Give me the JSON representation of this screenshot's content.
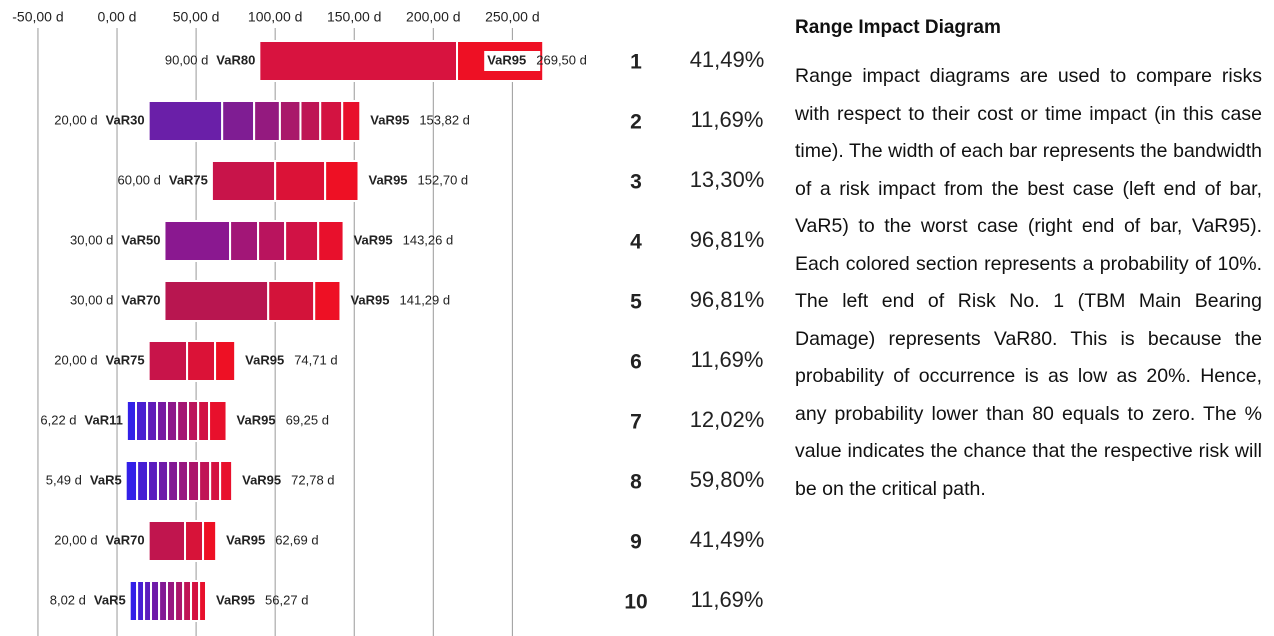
{
  "chart_data": {
    "type": "range_impact",
    "xlim": [
      -74,
      270
    ],
    "xticks": [
      {
        "value": -50,
        "label": "-50,00 d"
      },
      {
        "value": 0,
        "label": "0,00 d"
      },
      {
        "value": 50,
        "label": "50,00 d"
      },
      {
        "value": 100,
        "label": "100,00 d"
      },
      {
        "value": 150,
        "label": "150,00 d"
      },
      {
        "value": 200,
        "label": "200,00 d"
      },
      {
        "value": 250,
        "label": "250,00 d"
      }
    ],
    "grid": true,
    "bars": [
      {
        "rank": 1,
        "min": 90,
        "min_label": "90,00 d",
        "start": "VaR80",
        "end": "VaR95",
        "max": 269.5,
        "max_label": "269,50 d",
        "breaks": [
          215
        ],
        "colors": [
          "#d8133f",
          "#ee1024"
        ],
        "criticality": 41.49,
        "criticality_label": "41,49%"
      },
      {
        "rank": 2,
        "min": 20,
        "min_label": "20,00 d",
        "start": "VaR30",
        "end": "VaR95",
        "max": 153.82,
        "max_label": "153,82 d",
        "breaks": [
          66.5,
          86.7,
          103,
          116,
          128.5,
          142.4
        ],
        "colors": [
          "#6a1fa8",
          "#e8102c"
        ],
        "criticality": 11.69,
        "criticality_label": "11,69%"
      },
      {
        "rank": 3,
        "min": 60,
        "min_label": "60,00 d",
        "start": "VaR75",
        "end": "VaR95",
        "max": 152.7,
        "max_label": "152,70 d",
        "breaks": [
          100,
          131.6
        ],
        "colors": [
          "#c8144a",
          "#ee1024"
        ],
        "criticality": 13.3,
        "criticality_label": "13,30%"
      },
      {
        "rank": 4,
        "min": 30,
        "min_label": "30,00 d",
        "start": "VaR50",
        "end": "VaR95",
        "max": 143.26,
        "max_label": "143,26 d",
        "breaks": [
          71.5,
          89.2,
          106.3,
          127.2
        ],
        "colors": [
          "#8a1890",
          "#e8102c"
        ],
        "criticality": 96.81,
        "criticality_label": "96,81%"
      },
      {
        "rank": 5,
        "min": 30,
        "min_label": "30,00 d",
        "start": "VaR70",
        "end": "VaR95",
        "max": 141.29,
        "max_label": "141,29 d",
        "breaks": [
          95.6,
          124.7
        ],
        "colors": [
          "#b81650",
          "#ee1024"
        ],
        "criticality": 96.81,
        "criticality_label": "96,81%"
      },
      {
        "rank": 6,
        "min": 20,
        "min_label": "20,00 d",
        "start": "VaR75",
        "end": "VaR95",
        "max": 74.71,
        "max_label": "74,71 d",
        "breaks": [
          44.3,
          62
        ],
        "colors": [
          "#c8144a",
          "#ee1024"
        ],
        "criticality": 11.69,
        "criticality_label": "11,69%"
      },
      {
        "rank": 7,
        "min": 6.22,
        "min_label": "6,22 d",
        "start": "VaR11",
        "end": "VaR95",
        "max": 69.25,
        "max_label": "69,25 d",
        "breaks": [
          12,
          19,
          25.3,
          31.6,
          38,
          44.9,
          51.3,
          58.2
        ],
        "colors": [
          "#3320e8",
          "#e8102c"
        ],
        "criticality": 12.02,
        "criticality_label": "12,02%"
      },
      {
        "rank": 8,
        "min": 5.49,
        "min_label": "5,49 d",
        "start": "VaR5",
        "end": "VaR95",
        "max": 72.78,
        "max_label": "72,78 d",
        "breaks": [
          12.7,
          19.6,
          25.9,
          32.3,
          38.6,
          44.9,
          51.9,
          58.9,
          65.2
        ],
        "colors": [
          "#3320e8",
          "#e8102c"
        ],
        "criticality": 59.8,
        "criticality_label": "59,80%"
      },
      {
        "rank": 9,
        "min": 20,
        "min_label": "20,00 d",
        "start": "VaR70",
        "end": "VaR95",
        "max": 62.69,
        "max_label": "62,69 d",
        "breaks": [
          43,
          54.4
        ],
        "colors": [
          "#c0154e",
          "#ee1024"
        ],
        "criticality": 41.49,
        "criticality_label": "41,49%"
      },
      {
        "rank": 10,
        "min": 8.02,
        "min_label": "8,02 d",
        "start": "VaR5",
        "end": "VaR95",
        "max": 56.27,
        "max_label": "56,27 d",
        "breaks": [
          12.7,
          17.1,
          21.5,
          26.6,
          31.6,
          36.7,
          41.8,
          46.8,
          51.9
        ],
        "colors": [
          "#3320e8",
          "#e8102c"
        ],
        "criticality": 11.69,
        "criticality_label": "11,69%"
      }
    ]
  },
  "description": {
    "title": "Range Impact Diagram",
    "text": "Range impact diagrams are used to compare risks with respect to their cost or time impact (in this case time). The width of each bar represents the bandwidth of a risk impact from the best case (left end of bar, VaR5) to the worst case (right end of bar, VaR95). Each colored section represents a probability of 10%. The left end of Risk No. 1 (TBM Main Bearing Damage) represents VaR80. This is because the probability of occurrence is as low as 20%. Hence, any probability lower than 80 equals to zero. The % value indicates the chance that the respective risk will be on the critical path."
  }
}
